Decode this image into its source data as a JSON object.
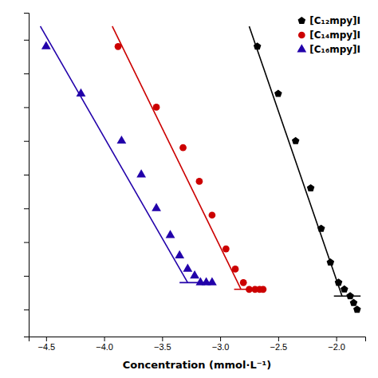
{
  "chart_data": {
    "type": "scatter",
    "xlabel": "Concentration (mmol·L⁻¹)",
    "xlim": [
      -4.65,
      -1.75
    ],
    "ylim": [
      26,
      74
    ],
    "xticks": [
      {
        "value": -4.5,
        "label": "−4.5"
      },
      {
        "value": -4.0,
        "label": "−4.0"
      },
      {
        "value": -3.5,
        "label": "−3.5"
      },
      {
        "value": -3.0,
        "label": "−3.0"
      },
      {
        "value": -2.5,
        "label": "−2.5"
      },
      {
        "value": -2.0,
        "label": "−2.0"
      }
    ],
    "yticks": [
      30,
      35,
      40,
      45,
      50,
      55,
      60,
      65,
      70
    ],
    "tick_labels": "x",
    "grid": false,
    "legend": "upper right",
    "series": [
      {
        "name": "[C₁₂mpy]I",
        "type": "scatter",
        "marker": "pentagon",
        "color": "#000000",
        "x": [
          -2.68,
          -2.5,
          -2.35,
          -2.22,
          -2.13,
          -2.05,
          -1.98,
          -1.93,
          -1.88,
          -1.85,
          -1.82
        ],
        "values": [
          69,
          62,
          55,
          48,
          42,
          37,
          34,
          33,
          32,
          31,
          30
        ]
      },
      {
        "type": "line",
        "color": "#000000",
        "x": [
          -2.75,
          -1.95
        ],
        "values": [
          72,
          32
        ]
      },
      {
        "type": "line",
        "color": "#000000",
        "x": [
          -2.02,
          -1.79
        ],
        "values": [
          32,
          32
        ]
      },
      {
        "name": "[C₁₄mpy]I",
        "type": "scatter",
        "marker": "circle",
        "color": "#cc0000",
        "x": [
          -3.88,
          -3.55,
          -3.32,
          -3.18,
          -3.07,
          -2.95,
          -2.87,
          -2.8,
          -2.75,
          -2.7,
          -2.66,
          -2.63
        ],
        "values": [
          69,
          60,
          54,
          49,
          44,
          39,
          36,
          34,
          33,
          33,
          33,
          33
        ]
      },
      {
        "type": "line",
        "color": "#cc0000",
        "x": [
          -3.93,
          -2.82
        ],
        "values": [
          72,
          33
        ]
      },
      {
        "type": "line",
        "color": "#cc0000",
        "x": [
          -2.88,
          -2.62
        ],
        "values": [
          33,
          33
        ]
      },
      {
        "name": "[C₁₆mpy]I",
        "type": "scatter",
        "marker": "triangle",
        "color": "#2200aa",
        "x": [
          -4.5,
          -4.2,
          -3.85,
          -3.68,
          -3.55,
          -3.43,
          -3.35,
          -3.28,
          -3.22,
          -3.17,
          -3.12,
          -3.07
        ],
        "values": [
          69,
          62,
          55,
          50,
          45,
          41,
          38,
          36,
          35,
          34,
          34,
          34
        ]
      },
      {
        "type": "line",
        "color": "#2200aa",
        "x": [
          -4.55,
          -3.28
        ],
        "values": [
          72,
          34
        ]
      },
      {
        "type": "line",
        "color": "#2200aa",
        "x": [
          -3.35,
          -3.05
        ],
        "values": [
          34,
          34
        ]
      }
    ]
  }
}
